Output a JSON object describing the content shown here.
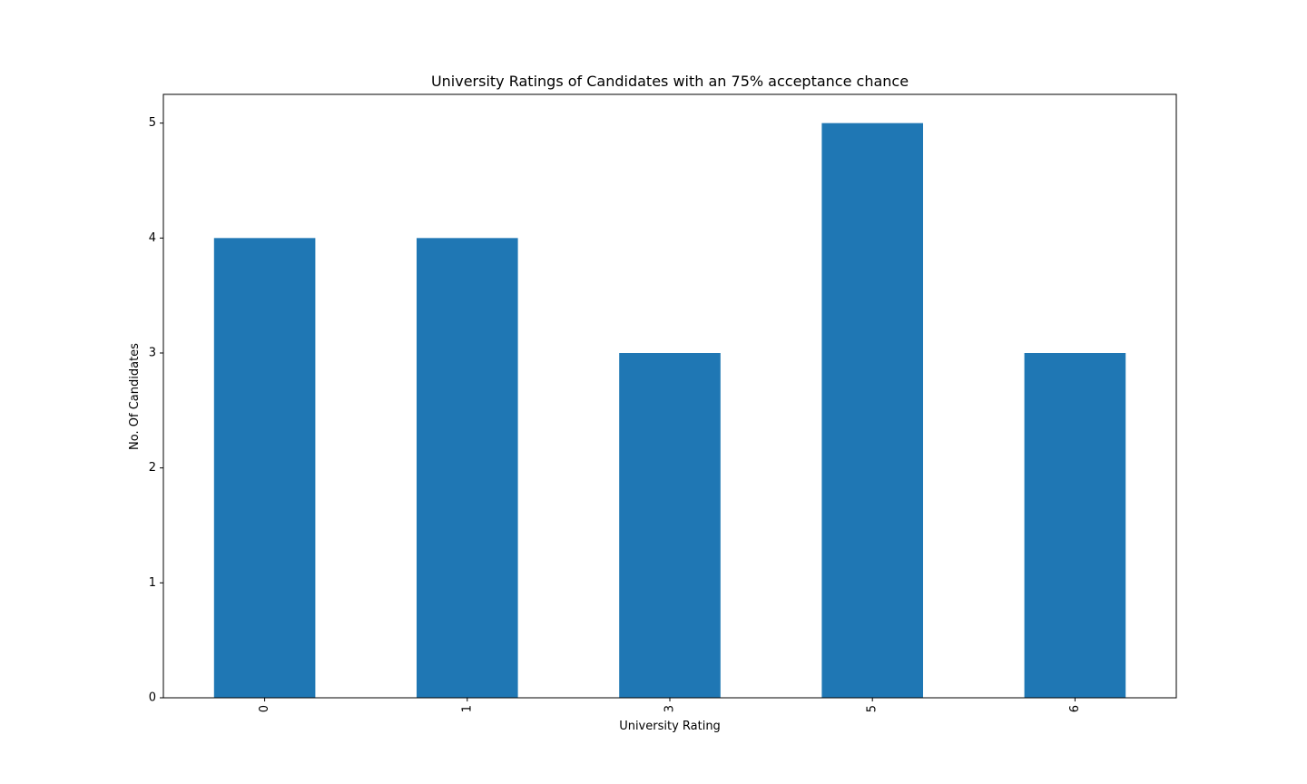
{
  "chart_data": {
    "type": "bar",
    "title": "University Ratings of Candidates with an 75% acceptance chance",
    "xlabel": "University Rating",
    "ylabel": "No. Of Candidates",
    "categories": [
      "0",
      "1",
      "3",
      "5",
      "6"
    ],
    "values": [
      4,
      4,
      3,
      5,
      3
    ],
    "ylim": [
      0,
      5.25
    ],
    "yticks": [
      "0",
      "1",
      "2",
      "3",
      "4",
      "5"
    ],
    "bar_color": "#1f77b4",
    "grid": false,
    "legend": "none",
    "x_tick_rotation": "vertical"
  }
}
